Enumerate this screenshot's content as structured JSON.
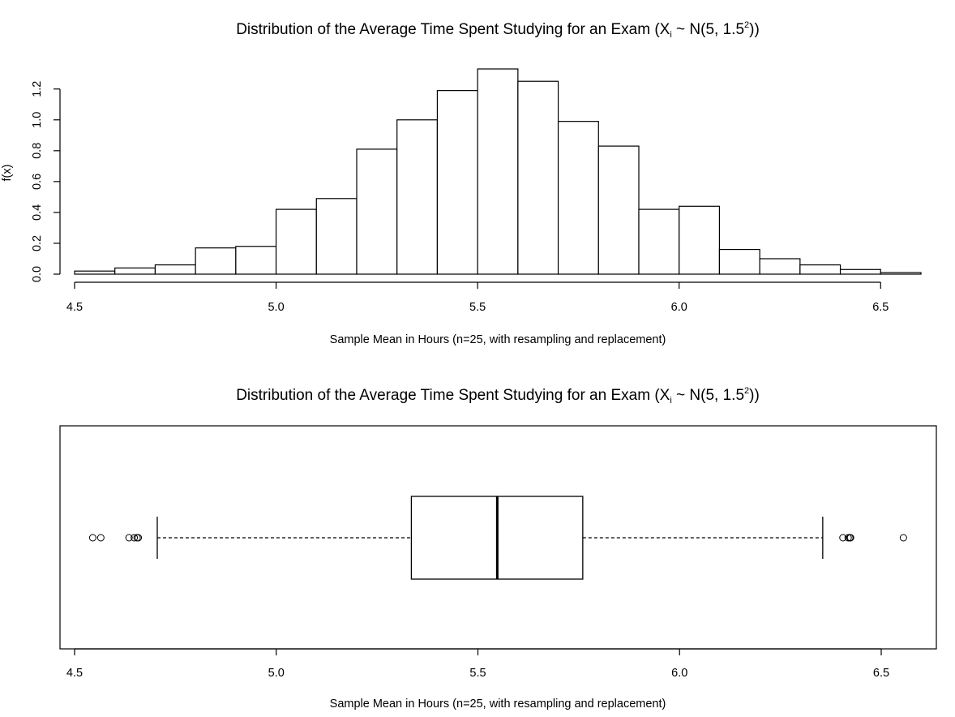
{
  "chart_data": [
    {
      "type": "histogram",
      "title": {
        "main": "Distribution of the Average Time Spent Studying for an Exam",
        "open": "(X",
        "sub": "i",
        "mid": " ~ N(5, 1.5",
        "sup": "2",
        "close": "))"
      },
      "xlabel": "Sample Mean in Hours (n=25, with resampling and replacement)",
      "ylabel": "f(x)",
      "xlim": [
        4.5,
        6.6
      ],
      "ylim": [
        0,
        1.33
      ],
      "xticks": [
        "4.5",
        "5.0",
        "5.5",
        "6.0",
        "6.5"
      ],
      "yticks": [
        "0.0",
        "0.2",
        "0.4",
        "0.6",
        "0.8",
        "1.0",
        "1.2"
      ],
      "bin_width": 0.1,
      "bin_starts": [
        4.5,
        4.6,
        4.7,
        4.8,
        4.9,
        5.0,
        5.1,
        5.2,
        5.3,
        5.4,
        5.5,
        5.6,
        5.7,
        5.8,
        5.9,
        6.0,
        6.1,
        6.2,
        6.3,
        6.4,
        6.5
      ],
      "densities": [
        0.02,
        0.04,
        0.06,
        0.17,
        0.18,
        0.42,
        0.49,
        0.81,
        1.0,
        1.19,
        1.33,
        1.25,
        0.99,
        0.83,
        0.42,
        0.44,
        0.16,
        0.1,
        0.06,
        0.03,
        0.01
      ]
    },
    {
      "type": "boxplot",
      "orientation": "horizontal",
      "title": {
        "main": "Distribution of the Average Time Spent Studying for an Exam",
        "open": "(X",
        "sub": "i",
        "mid": " ~ N(5, 1.5",
        "sup": "2",
        "close": "))"
      },
      "xlabel": "Sample Mean in Hours (n=25, with resampling and replacement)",
      "xlim": [
        4.46,
        6.64
      ],
      "xticks": [
        "4.5",
        "5.0",
        "5.5",
        "6.0",
        "6.5"
      ],
      "whisker_low": 4.705,
      "q1": 5.335,
      "median": 5.548,
      "q3": 5.76,
      "whisker_high": 6.355,
      "outliers": [
        4.545,
        4.565,
        4.635,
        4.648,
        4.655,
        4.658,
        6.405,
        6.418,
        6.422,
        6.424,
        6.555
      ]
    }
  ]
}
